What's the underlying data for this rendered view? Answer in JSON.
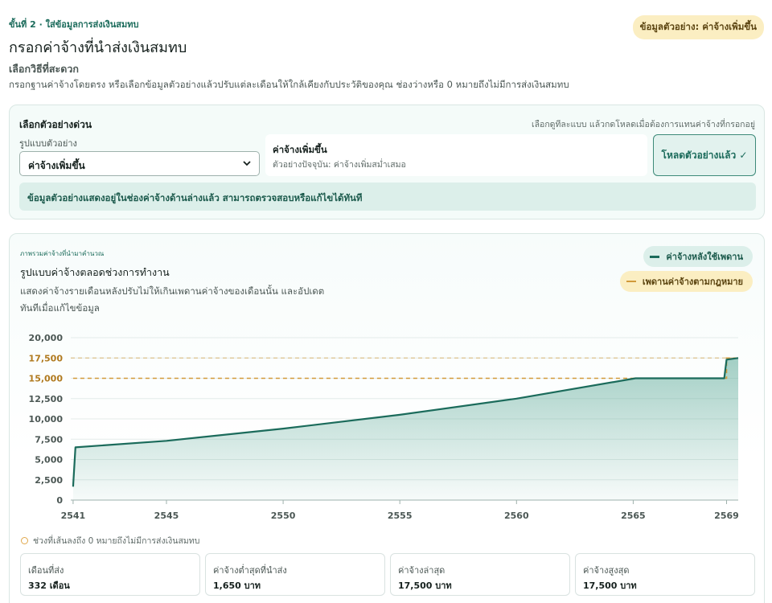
{
  "header": {
    "step_label": "ขั้นที่ 2 · ใส่ข้อมูลการส่งเงินสมทบ",
    "badge": "ข้อมูลตัวอย่าง: ค่าจ้างเพิ่มขึ้น",
    "title": "กรอกค่าจ้างที่นำส่งเงินสมทบ",
    "method_title": "เลือกวิธีที่สะดวก",
    "method_desc": "กรอกฐานค่าจ้างโดยตรง หรือเลือกข้อมูลตัวอย่างแล้วปรับแต่ละเดือนให้ใกล้เคียงกับประวัติของคุณ ช่องว่างหรือ 0 หมายถึงไม่มีการส่งเงินสมทบ"
  },
  "quick": {
    "title": "เลือกตัวอย่างด่วน",
    "hint": "เลือกดูทีละแบบ แล้วกดโหลดเมื่อต้องการแทนค่าจ้างที่กรอกอยู่",
    "select_label": "รูปแบบตัวอย่าง",
    "select_value": "ค่าจ้างเพิ่มขึ้น",
    "preview_title": "ค่าจ้างเพิ่มขึ้น",
    "preview_desc": "ตัวอย่างปัจจุบัน: ค่าจ้างเพิ่มสม่ำเสมอ",
    "load_button": "โหลดตัวอย่างแล้ว ✓",
    "info": "ข้อมูลตัวอย่างแสดงอยู่ในช่องค่าจ้างด้านล่างแล้ว สามารถตรวจสอบหรือแก้ไขได้ทันที"
  },
  "chart_section": {
    "kicker": "ภาพรวมค่าจ้างที่นำมาคำนวณ",
    "title": "รูปแบบค่าจ้างตลอดช่วงการทำงาน",
    "desc": "แสดงค่าจ้างรายเดือนหลังปรับไม่ให้เกินเพดานค่าจ้างของเดือนนั้น และอัปเดตทันทีเมื่อแก้ไขข้อมูล",
    "zero_note": "ช่วงที่เส้นลงถึง 0 หมายถึงไม่มีการส่งเงินสมทบ"
  },
  "chart_data": {
    "type": "line",
    "x_ticks": [
      "2541",
      "2545",
      "2550",
      "2555",
      "2560",
      "2565",
      "2569"
    ],
    "xlim": [
      2540.9,
      2569.5
    ],
    "ylim": [
      0,
      20000
    ],
    "y_ticks": [
      "0",
      "2,500",
      "5,000",
      "7,500",
      "10,000",
      "12,500",
      "15,000",
      "17,500",
      "20,000"
    ],
    "highlight_y_ticks": [
      "15,000",
      "17,500"
    ],
    "grid": true,
    "legend": "top-right",
    "series": [
      {
        "name": "ค่าจ้างหลังใช้เพดาน",
        "style": "solid-area",
        "color": "#1b6b5b",
        "x": [
          2541.0,
          2541.1,
          2545,
          2550,
          2555,
          2560,
          2565,
          2565.1,
          2568.9,
          2569.0,
          2569.5
        ],
        "y": [
          1650,
          6500,
          7300,
          8800,
          10500,
          12500,
          14950,
          15000,
          15000,
          17300,
          17500
        ]
      },
      {
        "name": "เพดานค่าจ้างตามกฎหมาย",
        "style": "dashed",
        "color": "#d19a3a",
        "x": [
          2541.0,
          2569.0,
          2569.0,
          2569.5
        ],
        "y": [
          15000,
          15000,
          17500,
          17500
        ]
      }
    ]
  },
  "stats": [
    {
      "label": "เดือนที่ส่ง",
      "value": "332 เดือน"
    },
    {
      "label": "ค่าจ้างต่ำสุดที่นำส่ง",
      "value": "1,650 บาท"
    },
    {
      "label": "ค่าจ้างล่าสุด",
      "value": "17,500 บาท"
    },
    {
      "label": "ค่าจ้างสูงสุด",
      "value": "17,500 บาท"
    }
  ]
}
